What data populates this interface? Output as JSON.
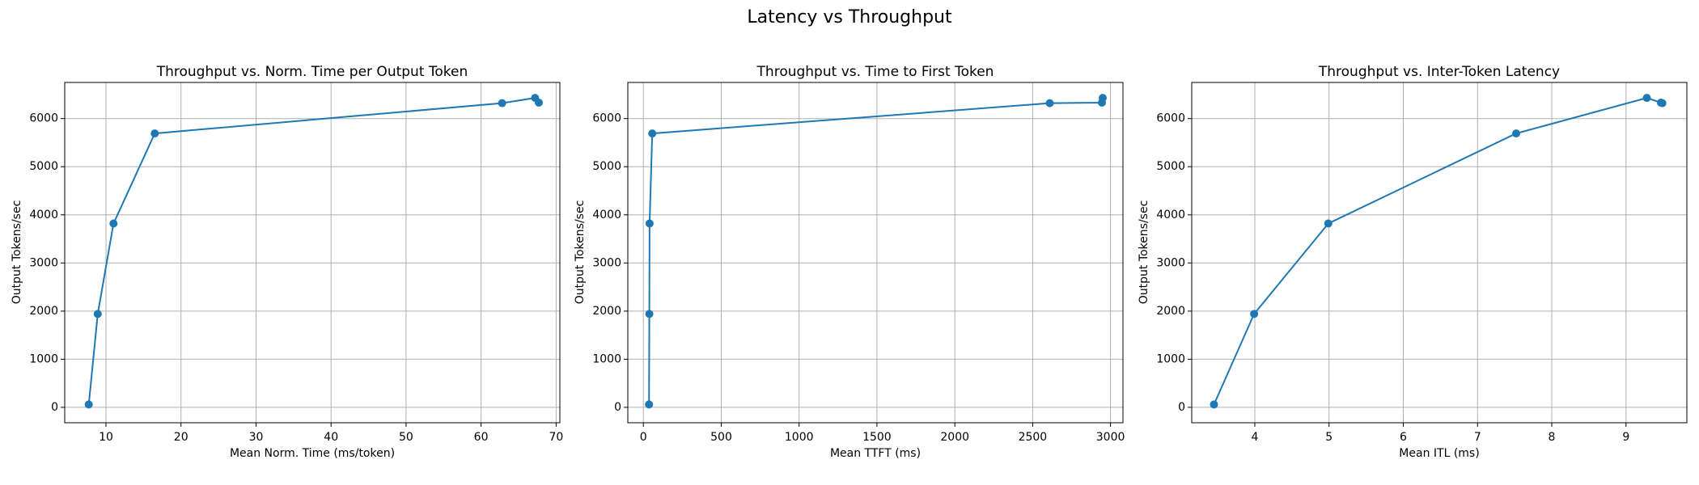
{
  "figure": {
    "title": "Latency vs Throughput",
    "series_color": "#1f77b4"
  },
  "chart_data": [
    {
      "type": "line",
      "title": "Throughput vs. Norm. Time per Output Token",
      "xlabel": "Mean Norm. Time (ms/token)",
      "ylabel": "Output Tokens/sec",
      "xlim": [
        4.5,
        70.5
      ],
      "ylim": [
        -320,
        6750
      ],
      "xticks": [
        10,
        20,
        30,
        40,
        50,
        60,
        70
      ],
      "yticks": [
        0,
        1000,
        2000,
        3000,
        4000,
        5000,
        6000
      ],
      "grid": true,
      "series": [
        {
          "x": [
            7.7,
            8.9,
            11.0,
            16.5,
            62.8,
            67.2,
            67.7
          ],
          "y": [
            60,
            1940,
            3820,
            5690,
            6320,
            6430,
            6330
          ]
        }
      ]
    },
    {
      "type": "line",
      "title": "Throughput vs. Time to First Token",
      "xlabel": "Mean TTFT (ms)",
      "ylabel": "Output Tokens/sec",
      "xlim": [
        -100,
        3080
      ],
      "ylim": [
        -320,
        6750
      ],
      "xticks": [
        0,
        500,
        1000,
        1500,
        2000,
        2500,
        3000
      ],
      "yticks": [
        0,
        1000,
        2000,
        3000,
        4000,
        5000,
        6000
      ],
      "grid": true,
      "series": [
        {
          "x": [
            36,
            38,
            40,
            57,
            2610,
            2945,
            2950
          ],
          "y": [
            60,
            1940,
            3820,
            5690,
            6320,
            6330,
            6430
          ]
        }
      ]
    },
    {
      "type": "line",
      "title": "Throughput vs. Inter-Token Latency",
      "xlabel": "Mean ITL (ms)",
      "ylabel": "Output Tokens/sec",
      "xlim": [
        3.15,
        9.82
      ],
      "ylim": [
        -320,
        6750
      ],
      "xticks": [
        4,
        5,
        6,
        7,
        8,
        9
      ],
      "yticks": [
        0,
        1000,
        2000,
        3000,
        4000,
        5000,
        6000
      ],
      "grid": true,
      "series": [
        {
          "x": [
            3.45,
            3.99,
            4.99,
            7.52,
            9.28,
            9.47,
            9.49
          ],
          "y": [
            60,
            1940,
            3820,
            5690,
            6430,
            6330,
            6320
          ]
        }
      ]
    }
  ]
}
